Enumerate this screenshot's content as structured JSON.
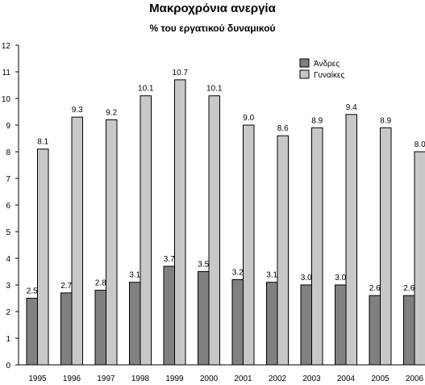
{
  "chart_data": {
    "type": "bar",
    "title": "Μακροχρόνια ανεργία",
    "subtitle": "% του εργατικού δυναμικού",
    "xlabel": "",
    "ylabel": "",
    "categories": [
      "1995",
      "1996",
      "1997",
      "1998",
      "1999",
      "2000",
      "2001",
      "2002",
      "2003",
      "2004",
      "2005",
      "2006"
    ],
    "series": [
      {
        "name": "Άνδρες",
        "color": "#808080",
        "values": [
          2.5,
          2.7,
          2.8,
          3.1,
          3.7,
          3.5,
          3.2,
          3.1,
          3.0,
          3.0,
          2.6,
          2.6
        ],
        "labels": [
          "2.5",
          "2.7",
          "2.8",
          "3.1",
          "3.7",
          "3.5",
          "3.2",
          "3.1",
          "3.0",
          "3.0",
          "2.6",
          "2.6"
        ]
      },
      {
        "name": "Γυναίκες",
        "color": "#c8c8c8",
        "values": [
          8.1,
          9.3,
          9.2,
          10.1,
          10.7,
          10.1,
          9.0,
          8.6,
          8.9,
          9.4,
          8.9,
          8.0
        ],
        "labels": [
          "8.1",
          "9.3",
          "9.2",
          "10.1",
          "10.7",
          "10.1",
          "9.0",
          "8.6",
          "8.9",
          "9.4",
          "8.9",
          "8.0"
        ]
      }
    ],
    "ylim": [
      0,
      12
    ],
    "yticks": [
      "0",
      "1",
      "2",
      "3",
      "4",
      "5",
      "6",
      "7",
      "8",
      "9",
      "10",
      "11",
      "12"
    ],
    "grid": false,
    "legend_position": "top-right"
  }
}
